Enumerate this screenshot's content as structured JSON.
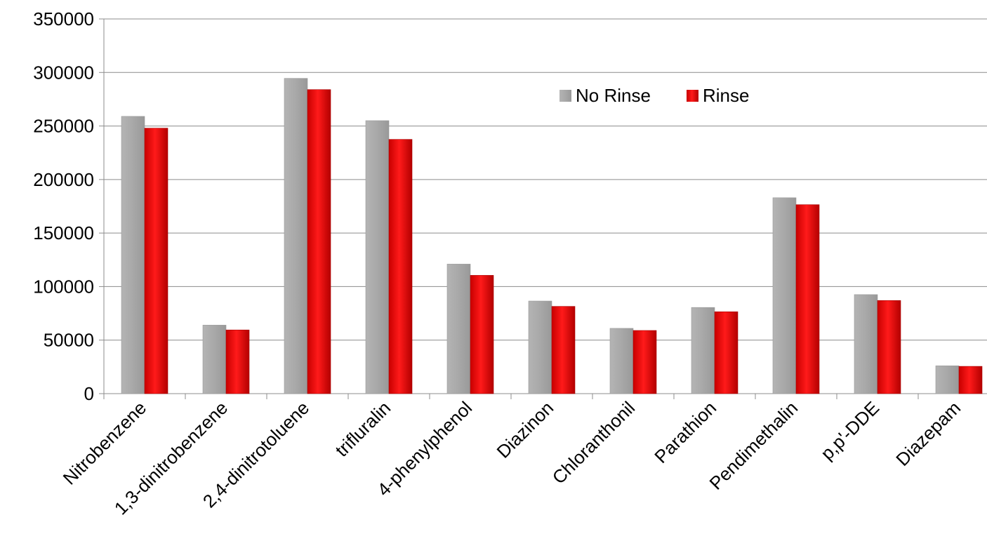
{
  "chart_data": {
    "type": "bar",
    "title": "",
    "xlabel": "",
    "ylabel": "",
    "ylim": [
      0,
      350000
    ],
    "yticks": [
      0,
      50000,
      100000,
      150000,
      200000,
      250000,
      300000,
      350000
    ],
    "grid": true,
    "legend_position": "top-right",
    "categories": [
      "Nitrobenzene",
      "1,3-dinitrobenzene",
      "2,4-dinitrotoluene",
      "trifluralin",
      "4-phenylphenol",
      "Diazinon",
      "Chloranthonil",
      "Parathion",
      "Pendimethalin",
      "p,p'-DDE",
      "Diazepam"
    ],
    "series": [
      {
        "name": "No Rinse",
        "color": "#a6a6a6",
        "values": [
          259000,
          64000,
          294500,
          255000,
          121000,
          86500,
          61000,
          80500,
          183000,
          92500,
          26000
        ]
      },
      {
        "name": "Rinse",
        "color": "#e00000",
        "values": [
          248000,
          59500,
          284000,
          237500,
          110500,
          81500,
          59000,
          76500,
          176500,
          87000,
          25500
        ]
      }
    ]
  }
}
